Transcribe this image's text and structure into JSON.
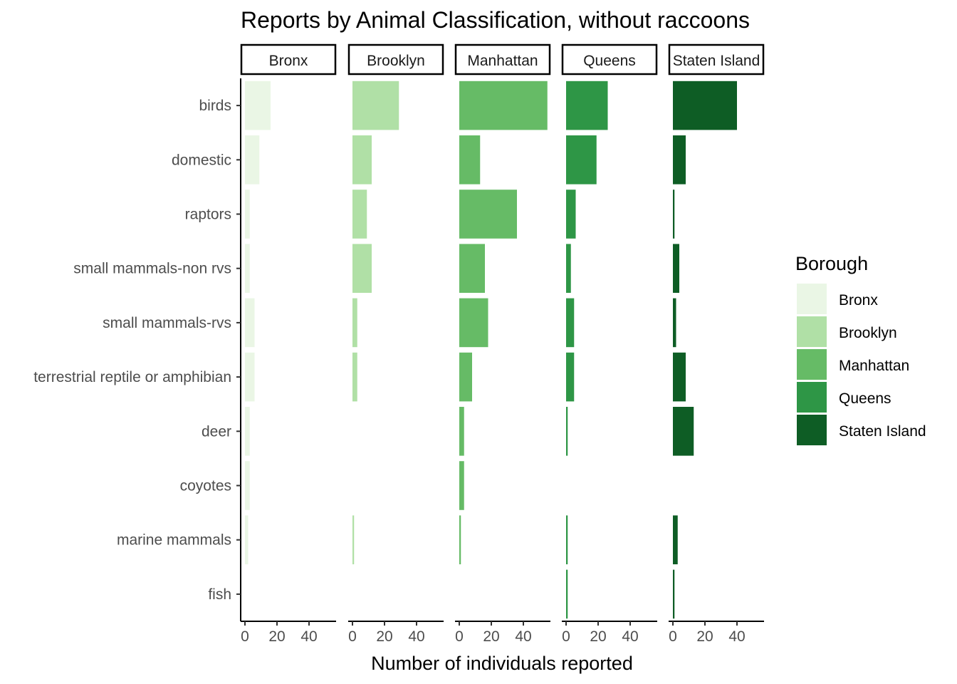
{
  "chart_data": {
    "type": "bar",
    "orientation": "horizontal",
    "faceted": true,
    "title": "Reports by Animal Classification, without raccoons",
    "xlabel": "Number of individuals reported",
    "ylabel": "",
    "xlim": [
      0,
      58
    ],
    "x_ticks": [
      0,
      20,
      40
    ],
    "grid": false,
    "legend": {
      "title": "Borough",
      "position": "right"
    },
    "categories": [
      "birds",
      "domestic",
      "raptors",
      "small mammals-non rvs",
      "small mammals-rvs",
      "terrestrial reptile or amphibian",
      "deer",
      "coyotes",
      "marine mammals",
      "fish"
    ],
    "series": [
      {
        "name": "Bronx",
        "color": "#EAF6E5",
        "values": [
          16,
          9,
          3,
          3,
          6,
          6,
          3,
          3,
          2,
          0
        ]
      },
      {
        "name": "Brooklyn",
        "color": "#B0E0A6",
        "values": [
          29,
          12,
          9,
          12,
          3,
          3,
          0,
          0,
          1,
          0
        ]
      },
      {
        "name": "Manhattan",
        "color": "#66BB66",
        "values": [
          55,
          13,
          36,
          16,
          18,
          8,
          3,
          3,
          1,
          0
        ]
      },
      {
        "name": "Queens",
        "color": "#2E9646",
        "values": [
          26,
          19,
          6,
          3,
          5,
          5,
          1,
          0,
          1,
          1
        ]
      },
      {
        "name": "Staten Island",
        "color": "#0E5D25",
        "values": [
          40,
          8,
          1,
          4,
          2,
          8,
          13,
          0,
          3,
          1
        ]
      }
    ]
  }
}
